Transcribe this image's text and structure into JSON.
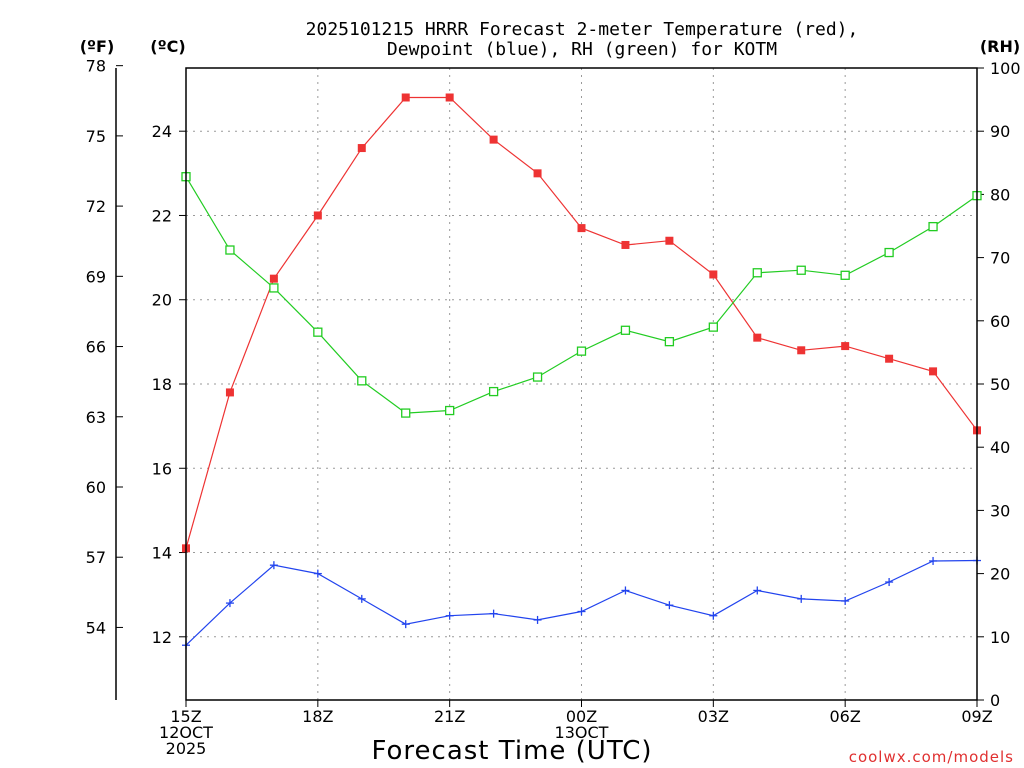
{
  "chart_data": {
    "type": "line",
    "title_line1": "2025101215 HRRR Forecast 2-meter Temperature (red),",
    "title_line2": "Dewpoint (blue), RH (green) for KOTM",
    "xlabel": "Forecast Time (UTC)",
    "watermark": "coolwx.com/models",
    "units": {
      "fahrenheit": "(ºF)",
      "celsius": "(ºC)",
      "rh": "(RH)"
    },
    "x": [
      0,
      1,
      2,
      3,
      4,
      5,
      6,
      7,
      8,
      9,
      10,
      11,
      12,
      13,
      14,
      15,
      16,
      17,
      18
    ],
    "xlim": [
      0,
      18
    ],
    "x_ticks": [
      {
        "x": 0,
        "lines": [
          "15Z",
          "12OCT",
          "2025"
        ]
      },
      {
        "x": 3,
        "lines": [
          "18Z"
        ]
      },
      {
        "x": 6,
        "lines": [
          "21Z"
        ]
      },
      {
        "x": 9,
        "lines": [
          "00Z",
          "13OCT"
        ]
      },
      {
        "x": 12,
        "lines": [
          "03Z"
        ]
      },
      {
        "x": 15,
        "lines": [
          "06Z"
        ]
      },
      {
        "x": 18,
        "lines": [
          "09Z"
        ]
      }
    ],
    "celsius_axis": {
      "range": [
        10.5,
        25.5
      ],
      "ticks": [
        "12",
        "14",
        "16",
        "18",
        "20",
        "22",
        "24"
      ]
    },
    "fahrenheit_axis": {
      "range": [
        50.9,
        77.9
      ],
      "ticks": [
        "54",
        "57",
        "60",
        "63",
        "66",
        "69",
        "72",
        "75",
        "78"
      ]
    },
    "rh_axis": {
      "range": [
        0,
        100
      ],
      "ticks": [
        "0",
        "10",
        "20",
        "30",
        "40",
        "50",
        "60",
        "70",
        "80",
        "90",
        "100"
      ]
    },
    "series": [
      {
        "name": "Temperature",
        "axis": "celsius",
        "color": "#ee3333",
        "marker": "filled-square",
        "values": [
          14.1,
          17.8,
          20.5,
          22.0,
          23.6,
          24.8,
          24.8,
          23.8,
          23.0,
          21.7,
          21.3,
          21.4,
          20.6,
          19.1,
          18.8,
          18.9,
          18.6,
          18.3,
          16.9
        ]
      },
      {
        "name": "Dewpoint",
        "axis": "celsius",
        "color": "#2244ee",
        "marker": "plus",
        "values": [
          11.8,
          12.8,
          13.7,
          13.5,
          12.9,
          12.3,
          12.5,
          12.55,
          12.4,
          12.6,
          13.1,
          12.75,
          12.5,
          13.1,
          12.9,
          12.85,
          13.3,
          13.8,
          13.81
        ]
      },
      {
        "name": "RH",
        "axis": "rh",
        "color": "#22cc22",
        "marker": "open-square",
        "values": [
          82.8,
          71.2,
          65.2,
          58.2,
          50.5,
          45.4,
          45.8,
          48.8,
          51.1,
          55.2,
          58.5,
          56.7,
          59.0,
          67.6,
          68.0,
          67.2,
          70.8,
          74.9,
          79.8
        ]
      }
    ]
  }
}
